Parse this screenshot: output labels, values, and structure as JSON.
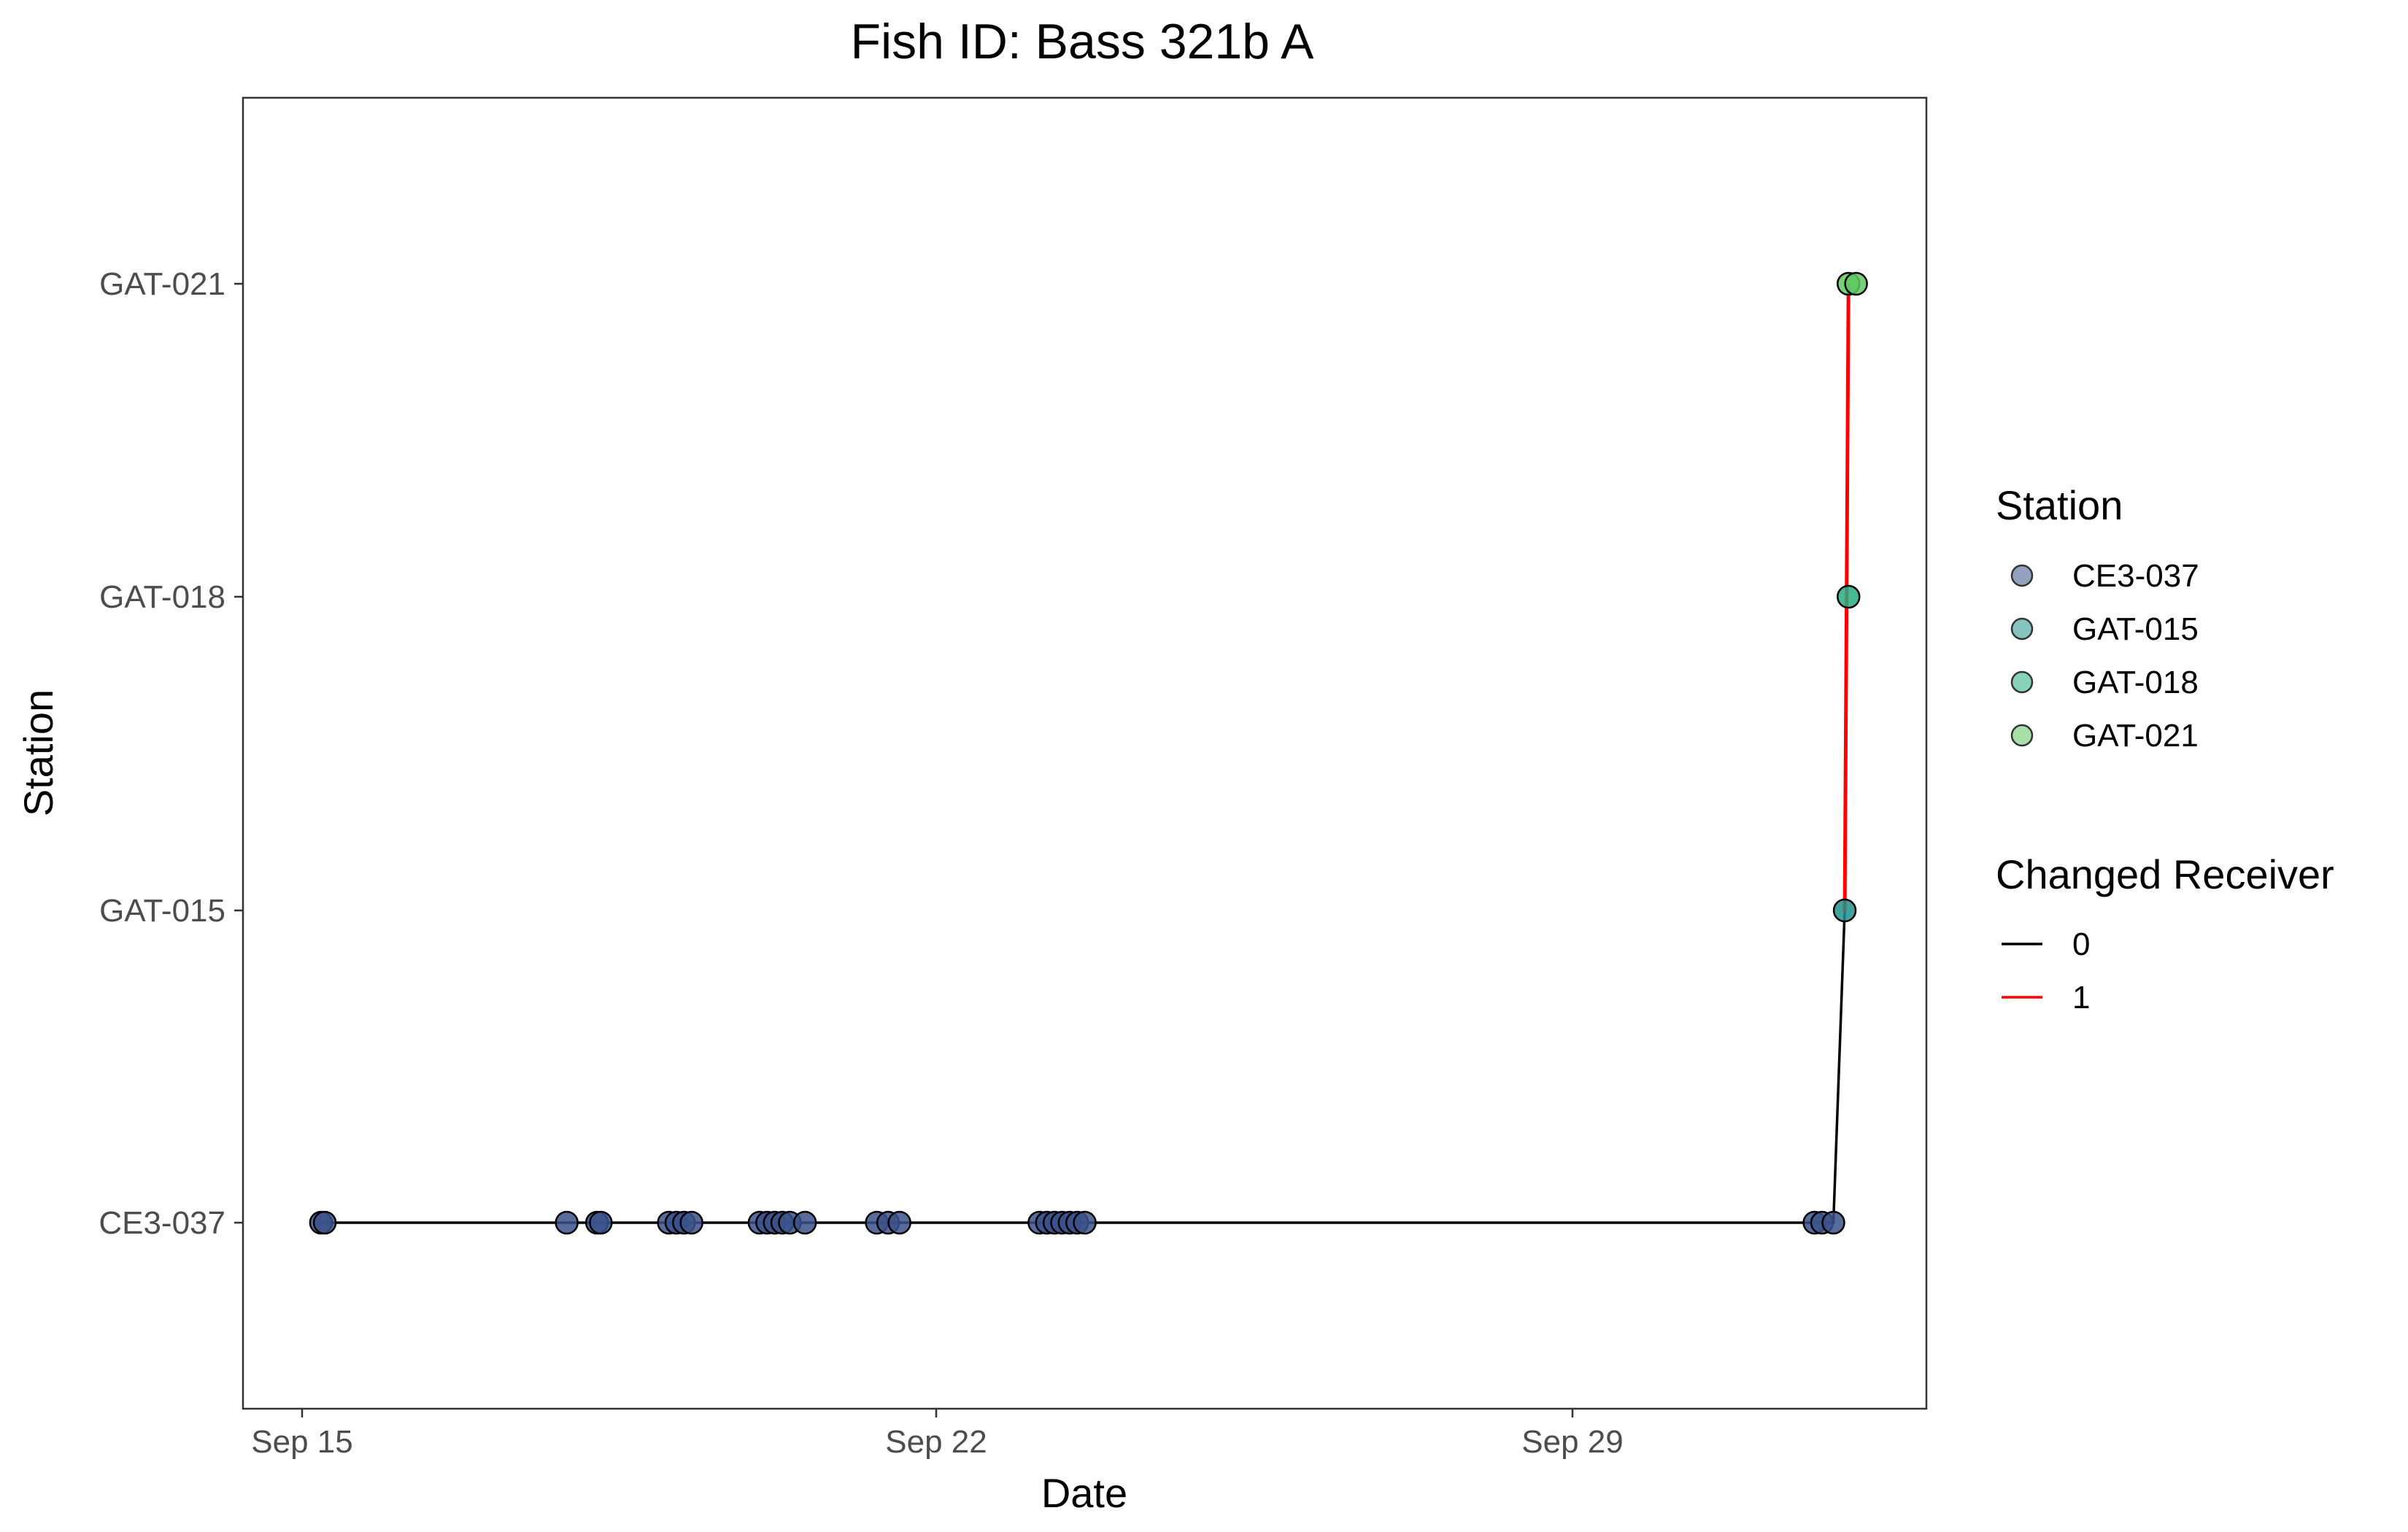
{
  "chart_data": {
    "type": "scatter",
    "title": "Fish ID: Bass 321b A",
    "xlabel": "Date",
    "ylabel": "Station",
    "x_ticks": [
      "Sep 15",
      "Sep 22",
      "Sep 29"
    ],
    "y_categories": [
      "CE3-037",
      "GAT-015",
      "GAT-018",
      "GAT-021"
    ],
    "xlim": [
      "2023-09-14T09:00",
      "2023-10-03T08:00"
    ],
    "grid": false,
    "legend_position": "right",
    "detections": [
      {
        "date": "2023-09-15T05:00",
        "station": "CE3-037"
      },
      {
        "date": "2023-09-15T06:00",
        "station": "CE3-037"
      },
      {
        "date": "2023-09-17T22:00",
        "station": "CE3-037"
      },
      {
        "date": "2023-09-18T06:00",
        "station": "CE3-037"
      },
      {
        "date": "2023-09-18T07:00",
        "station": "CE3-037"
      },
      {
        "date": "2023-09-19T01:00",
        "station": "CE3-037"
      },
      {
        "date": "2023-09-19T03:00",
        "station": "CE3-037"
      },
      {
        "date": "2023-09-19T05:00",
        "station": "CE3-037"
      },
      {
        "date": "2023-09-19T07:00",
        "station": "CE3-037"
      },
      {
        "date": "2023-09-20T01:00",
        "station": "CE3-037"
      },
      {
        "date": "2023-09-20T03:00",
        "station": "CE3-037"
      },
      {
        "date": "2023-09-20T05:00",
        "station": "CE3-037"
      },
      {
        "date": "2023-09-20T07:00",
        "station": "CE3-037"
      },
      {
        "date": "2023-09-20T09:00",
        "station": "CE3-037"
      },
      {
        "date": "2023-09-20T13:00",
        "station": "CE3-037"
      },
      {
        "date": "2023-09-21T08:00",
        "station": "CE3-037"
      },
      {
        "date": "2023-09-21T11:00",
        "station": "CE3-037"
      },
      {
        "date": "2023-09-21T14:00",
        "station": "CE3-037"
      },
      {
        "date": "2023-09-23T03:00",
        "station": "CE3-037"
      },
      {
        "date": "2023-09-23T05:00",
        "station": "CE3-037"
      },
      {
        "date": "2023-09-23T07:00",
        "station": "CE3-037"
      },
      {
        "date": "2023-09-23T09:00",
        "station": "CE3-037"
      },
      {
        "date": "2023-09-23T11:00",
        "station": "CE3-037"
      },
      {
        "date": "2023-09-23T13:00",
        "station": "CE3-037"
      },
      {
        "date": "2023-09-23T15:00",
        "station": "CE3-037"
      },
      {
        "date": "2023-10-01T16:00",
        "station": "CE3-037"
      },
      {
        "date": "2023-10-01T18:00",
        "station": "CE3-037"
      },
      {
        "date": "2023-10-01T21:00",
        "station": "CE3-037"
      },
      {
        "date": "2023-10-02T00:00",
        "station": "GAT-015"
      },
      {
        "date": "2023-10-02T01:00",
        "station": "GAT-018"
      },
      {
        "date": "2023-10-02T01:00",
        "station": "GAT-021"
      },
      {
        "date": "2023-10-02T03:00",
        "station": "GAT-021"
      }
    ],
    "path_segments": [
      {
        "from": {
          "date": "2023-09-15T05:00",
          "station": "CE3-037"
        },
        "to": {
          "date": "2023-10-01T21:00",
          "station": "CE3-037"
        },
        "changed": "0"
      },
      {
        "from": {
          "date": "2023-10-01T21:00",
          "station": "CE3-037"
        },
        "to": {
          "date": "2023-10-02T00:00",
          "station": "GAT-015"
        },
        "changed": "0"
      },
      {
        "from": {
          "date": "2023-10-02T00:00",
          "station": "GAT-015"
        },
        "to": {
          "date": "2023-10-02T01:00",
          "station": "GAT-021"
        },
        "changed": "1"
      }
    ],
    "legend": {
      "station": {
        "title": "Station",
        "entries": [
          {
            "label": "CE3-037",
            "color": "#3b528b"
          },
          {
            "label": "GAT-015",
            "color": "#21908c"
          },
          {
            "label": "GAT-018",
            "color": "#27ad81"
          },
          {
            "label": "GAT-021",
            "color": "#5ec962"
          }
        ]
      },
      "changed_receiver": {
        "title": "Changed Receiver",
        "entries": [
          {
            "label": "0",
            "color": "#000000"
          },
          {
            "label": "1",
            "color": "#ff0000"
          }
        ]
      }
    }
  }
}
